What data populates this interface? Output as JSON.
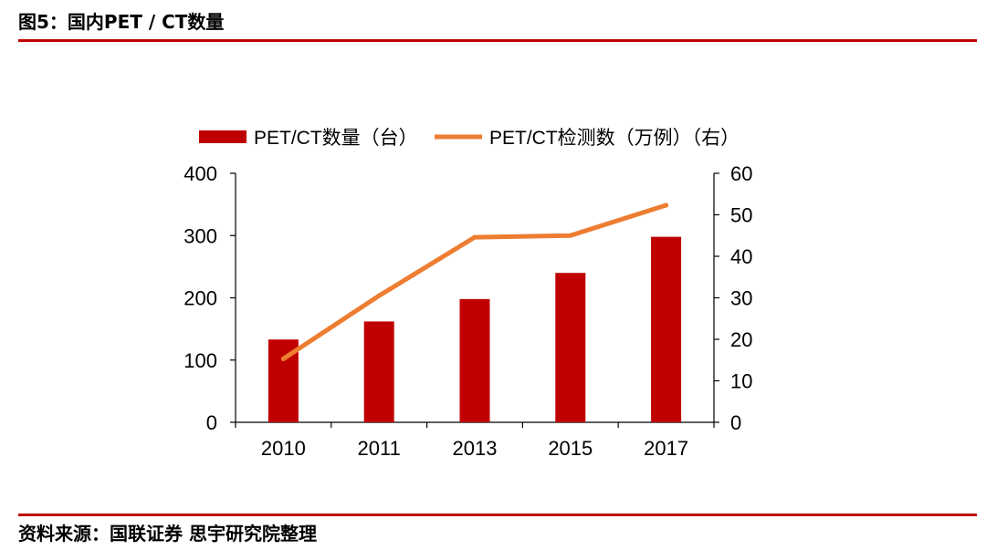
{
  "header": {
    "title": "图5：国内PET / CT数量"
  },
  "footer": {
    "source": "资料来源：国联证券 思宇研究院整理"
  },
  "colors": {
    "bar": "#c00000",
    "line": "#ed7d31",
    "rule": "#c00000"
  },
  "chart_data": {
    "type": "bar+line",
    "categories": [
      "2010",
      "2011",
      "2013",
      "2015",
      "2017"
    ],
    "series": [
      {
        "name": "PET/CT数量（台）",
        "type": "bar",
        "axis": "left",
        "values": [
          133,
          162,
          198,
          240,
          298
        ]
      },
      {
        "name": "PET/CT检测数（万例）（右）",
        "type": "line",
        "axis": "right",
        "values": [
          15.3,
          30.5,
          44.6,
          45.0,
          52.3
        ]
      }
    ],
    "y_left": {
      "min": 0,
      "max": 400,
      "ticks": [
        0,
        100,
        200,
        300,
        400
      ]
    },
    "y_right": {
      "min": 0,
      "max": 60,
      "ticks": [
        0,
        10,
        20,
        30,
        40,
        50,
        60
      ]
    },
    "legend": "top",
    "grid": false
  }
}
